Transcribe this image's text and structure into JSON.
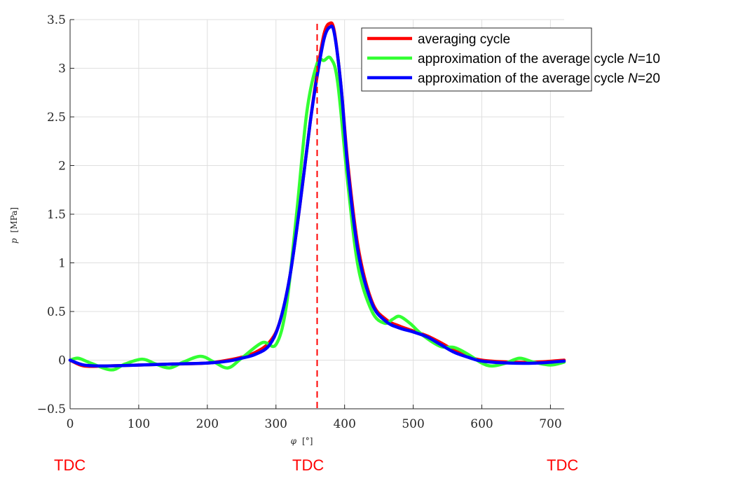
{
  "chart_data": {
    "type": "line",
    "xlabel_symbol": "φ",
    "xlabel_unit": "[°]",
    "ylabel_symbol": "p",
    "ylabel_unit": "[MPa]",
    "xlim": [
      0,
      720
    ],
    "ylim": [
      -0.5,
      3.5
    ],
    "xticks": [
      0,
      100,
      200,
      300,
      400,
      500,
      600,
      700
    ],
    "yticks": [
      -0.5,
      0,
      0.5,
      1,
      1.5,
      2,
      2.5,
      3,
      3.5
    ],
    "ytick_labels": [
      "−0.5",
      "0",
      "0.5",
      "1",
      "1.5",
      "2",
      "2.5",
      "3",
      "3.5"
    ],
    "grid": true,
    "vline": {
      "x": 360,
      "color": "#ff0000",
      "style": "dashed"
    },
    "legend_position": "top-right",
    "series": [
      {
        "name": "averaging cycle",
        "color": "#ff0000",
        "points": [
          [
            0,
            0
          ],
          [
            20,
            -0.06
          ],
          [
            50,
            -0.06
          ],
          [
            100,
            -0.05
          ],
          [
            150,
            -0.04
          ],
          [
            200,
            -0.03
          ],
          [
            230,
            0
          ],
          [
            250,
            0.03
          ],
          [
            270,
            0.08
          ],
          [
            290,
            0.18
          ],
          [
            305,
            0.38
          ],
          [
            320,
            0.85
          ],
          [
            335,
            1.6
          ],
          [
            350,
            2.45
          ],
          [
            360,
            2.95
          ],
          [
            370,
            3.35
          ],
          [
            378,
            3.46
          ],
          [
            385,
            3.38
          ],
          [
            395,
            2.8
          ],
          [
            405,
            2.0
          ],
          [
            420,
            1.15
          ],
          [
            440,
            0.6
          ],
          [
            460,
            0.42
          ],
          [
            480,
            0.35
          ],
          [
            500,
            0.3
          ],
          [
            520,
            0.25
          ],
          [
            540,
            0.18
          ],
          [
            560,
            0.1
          ],
          [
            580,
            0.04
          ],
          [
            600,
            0
          ],
          [
            640,
            -0.02
          ],
          [
            680,
            -0.02
          ],
          [
            720,
            0
          ]
        ]
      },
      {
        "name": "approximation of the average cycle N=10",
        "color": "#33ff33",
        "points": [
          [
            0,
            0
          ],
          [
            12,
            0.02
          ],
          [
            30,
            -0.03
          ],
          [
            60,
            -0.1
          ],
          [
            80,
            -0.04
          ],
          [
            105,
            0.01
          ],
          [
            125,
            -0.04
          ],
          [
            145,
            -0.08
          ],
          [
            165,
            -0.02
          ],
          [
            190,
            0.04
          ],
          [
            210,
            -0.02
          ],
          [
            230,
            -0.08
          ],
          [
            250,
            0.02
          ],
          [
            280,
            0.18
          ],
          [
            300,
            0.16
          ],
          [
            315,
            0.55
          ],
          [
            330,
            1.5
          ],
          [
            345,
            2.55
          ],
          [
            360,
            3.05
          ],
          [
            370,
            3.08
          ],
          [
            380,
            3.1
          ],
          [
            390,
            2.85
          ],
          [
            405,
            1.8
          ],
          [
            420,
            0.95
          ],
          [
            440,
            0.5
          ],
          [
            458,
            0.38
          ],
          [
            470,
            0.42
          ],
          [
            480,
            0.45
          ],
          [
            495,
            0.38
          ],
          [
            515,
            0.25
          ],
          [
            540,
            0.14
          ],
          [
            560,
            0.13
          ],
          [
            580,
            0.06
          ],
          [
            600,
            -0.03
          ],
          [
            615,
            -0.06
          ],
          [
            635,
            -0.03
          ],
          [
            655,
            0.02
          ],
          [
            675,
            -0.02
          ],
          [
            700,
            -0.05
          ],
          [
            720,
            -0.02
          ]
        ]
      },
      {
        "name": "approximation of the average cycle N=20",
        "color": "#0000ff",
        "points": [
          [
            0,
            0
          ],
          [
            20,
            -0.05
          ],
          [
            50,
            -0.06
          ],
          [
            100,
            -0.05
          ],
          [
            150,
            -0.04
          ],
          [
            200,
            -0.03
          ],
          [
            230,
            -0.01
          ],
          [
            250,
            0.02
          ],
          [
            270,
            0.06
          ],
          [
            290,
            0.15
          ],
          [
            305,
            0.38
          ],
          [
            320,
            0.85
          ],
          [
            335,
            1.6
          ],
          [
            350,
            2.45
          ],
          [
            360,
            2.92
          ],
          [
            370,
            3.3
          ],
          [
            378,
            3.42
          ],
          [
            385,
            3.36
          ],
          [
            395,
            2.8
          ],
          [
            405,
            1.95
          ],
          [
            420,
            1.1
          ],
          [
            440,
            0.58
          ],
          [
            460,
            0.4
          ],
          [
            480,
            0.33
          ],
          [
            500,
            0.29
          ],
          [
            520,
            0.24
          ],
          [
            540,
            0.16
          ],
          [
            560,
            0.08
          ],
          [
            580,
            0.03
          ],
          [
            600,
            -0.01
          ],
          [
            640,
            -0.03
          ],
          [
            680,
            -0.03
          ],
          [
            720,
            -0.01
          ]
        ]
      }
    ],
    "legend_entries": [
      {
        "text": "averaging cycle",
        "italic": "",
        "suffix": ""
      },
      {
        "text": "approximation of the average cycle ",
        "italic": "N",
        "suffix": "=10"
      },
      {
        "text": "approximation of the average cycle ",
        "italic": "N",
        "suffix": "=20"
      }
    ]
  },
  "annotations": {
    "tdc_left": "TDC",
    "tdc_mid": "TDC",
    "tdc_right": "TDC"
  }
}
